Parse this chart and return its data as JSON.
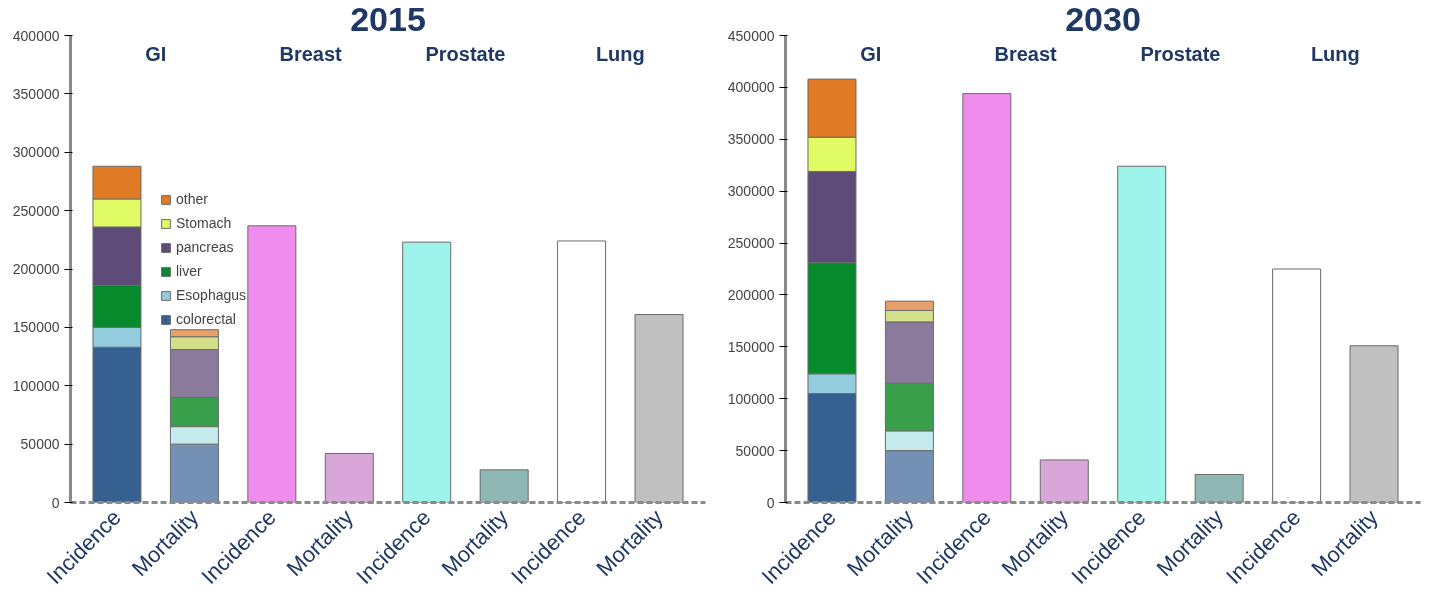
{
  "chart_data": [
    {
      "type": "bar",
      "title": "2015",
      "stacked": true,
      "legend": "top left",
      "categories": [
        "Incidence",
        "Mortality",
        "Incidence",
        "Mortality",
        "Incidence",
        "Mortality",
        "Incidence",
        "Mortality"
      ],
      "ylim": [
        0,
        400000
      ],
      "yticks": [
        0,
        50000,
        100000,
        150000,
        200000,
        250000,
        300000,
        350000,
        400000
      ],
      "annotations": [
        "GI",
        "Breast",
        "Prostate",
        "Lung"
      ],
      "series": [
        {
          "name": "colorectal",
          "colors": [
            "#36608f",
            "#7590b5",
            null,
            null,
            null,
            null,
            null,
            null
          ],
          "values": [
            133000,
            50000,
            null,
            null,
            null,
            null,
            null,
            null
          ]
        },
        {
          "name": "Esophagus",
          "colors": [
            "#93cddd",
            "#c6ebee",
            null,
            null,
            null,
            null,
            null,
            null
          ],
          "values": [
            17000,
            15000,
            null,
            null,
            null,
            null,
            null,
            null
          ]
        },
        {
          "name": "liver",
          "colors": [
            "#078a2b",
            "#3a9f4a",
            null,
            null,
            null,
            null,
            null,
            null
          ],
          "values": [
            36000,
            25000,
            null,
            null,
            null,
            null,
            null,
            null
          ]
        },
        {
          "name": "pancreas",
          "colors": [
            "#5f4b7a",
            "#8a7a9c",
            null,
            null,
            null,
            null,
            null,
            null
          ],
          "values": [
            50000,
            41000,
            null,
            null,
            null,
            null,
            null,
            null
          ]
        },
        {
          "name": "Stomach",
          "colors": [
            "#e0fb63",
            "#d2e08a",
            null,
            null,
            null,
            null,
            null,
            null
          ],
          "values": [
            24000,
            11000,
            null,
            null,
            null,
            null,
            null,
            null
          ]
        },
        {
          "name": "other",
          "colors": [
            "#e07a25",
            "#e8a06a",
            null,
            null,
            null,
            null,
            null,
            null
          ],
          "values": [
            28000,
            6000,
            null,
            null,
            null,
            null,
            null,
            null
          ]
        },
        {
          "colors": [
            null,
            null,
            "#f08cee",
            "#d8a6d8",
            null,
            null,
            null,
            null
          ],
          "values": [
            null,
            null,
            237000,
            42000,
            null,
            null,
            null,
            null
          ]
        },
        {
          "colors": [
            null,
            null,
            null,
            null,
            "#9ef3ea",
            "#8fb8b4",
            null,
            null
          ],
          "values": [
            null,
            null,
            null,
            null,
            223000,
            28000,
            null,
            null
          ]
        },
        {
          "colors": [
            null,
            null,
            null,
            null,
            null,
            null,
            "#ffffff",
            "#c0c0c0"
          ],
          "values": [
            null,
            null,
            null,
            null,
            null,
            null,
            224000,
            161000
          ]
        }
      ]
    },
    {
      "type": "bar",
      "title": "2030",
      "stacked": true,
      "categories": [
        "Incidence",
        "Mortality",
        "Incidence",
        "Mortality",
        "Incidence",
        "Mortality",
        "Incidence",
        "Mortality"
      ],
      "ylim": [
        0,
        450000
      ],
      "yticks": [
        0,
        50000,
        100000,
        150000,
        200000,
        250000,
        300000,
        350000,
        400000,
        450000
      ],
      "annotations": [
        "GI",
        "Breast",
        "Prostate",
        "Lung"
      ],
      "series": [
        {
          "colors": [
            "#36608f",
            "#7590b5",
            null,
            null,
            null,
            null,
            null,
            null
          ],
          "values": [
            105000,
            50000,
            null,
            null,
            null,
            null,
            null,
            null
          ]
        },
        {
          "colors": [
            "#93cddd",
            "#c6ebee",
            null,
            null,
            null,
            null,
            null,
            null
          ],
          "values": [
            19000,
            19000,
            null,
            null,
            null,
            null,
            null,
            null
          ]
        },
        {
          "colors": [
            "#078a2b",
            "#3a9f4a",
            null,
            null,
            null,
            null,
            null,
            null
          ],
          "values": [
            107000,
            46000,
            null,
            null,
            null,
            null,
            null,
            null
          ]
        },
        {
          "colors": [
            "#5f4b7a",
            "#8a7a9c",
            null,
            null,
            null,
            null,
            null,
            null
          ],
          "values": [
            88000,
            59000,
            null,
            null,
            null,
            null,
            null,
            null
          ]
        },
        {
          "colors": [
            "#e0fb63",
            "#d2e08a",
            null,
            null,
            null,
            null,
            null,
            null
          ],
          "values": [
            33000,
            11000,
            null,
            null,
            null,
            null,
            null,
            null
          ]
        },
        {
          "colors": [
            "#e07a25",
            "#e8a06a",
            null,
            null,
            null,
            null,
            null,
            null
          ],
          "values": [
            56000,
            9000,
            null,
            null,
            null,
            null,
            null,
            null
          ]
        },
        {
          "colors": [
            null,
            null,
            "#f08cee",
            "#d8a6d8",
            null,
            null,
            null,
            null
          ],
          "values": [
            null,
            null,
            394000,
            41000,
            null,
            null,
            null,
            null
          ]
        },
        {
          "colors": [
            null,
            null,
            null,
            null,
            "#9ef3ea",
            "#8fb8b4",
            null,
            null
          ],
          "values": [
            null,
            null,
            null,
            null,
            324000,
            27000,
            null,
            null
          ]
        },
        {
          "colors": [
            null,
            null,
            null,
            null,
            null,
            null,
            "#ffffff",
            "#c0c0c0"
          ],
          "values": [
            null,
            null,
            null,
            null,
            null,
            null,
            225000,
            151000
          ]
        }
      ]
    }
  ]
}
